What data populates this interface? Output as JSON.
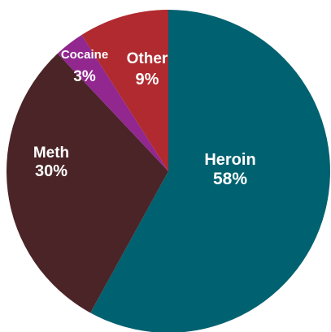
{
  "chart_data": {
    "type": "pie",
    "title": "",
    "start_angle_deg": 0,
    "direction": "clockwise",
    "slices": [
      {
        "name": "Heroin",
        "value": 58,
        "label": "58%",
        "color": "#006170"
      },
      {
        "name": "Meth",
        "value": 30,
        "label": "30%",
        "color": "#4a2426"
      },
      {
        "name": "Cocaine",
        "value": 3,
        "label": "3%",
        "color": "#91278f"
      },
      {
        "name": "Other",
        "value": 9,
        "label": "9%",
        "color": "#b02a2f"
      }
    ]
  }
}
